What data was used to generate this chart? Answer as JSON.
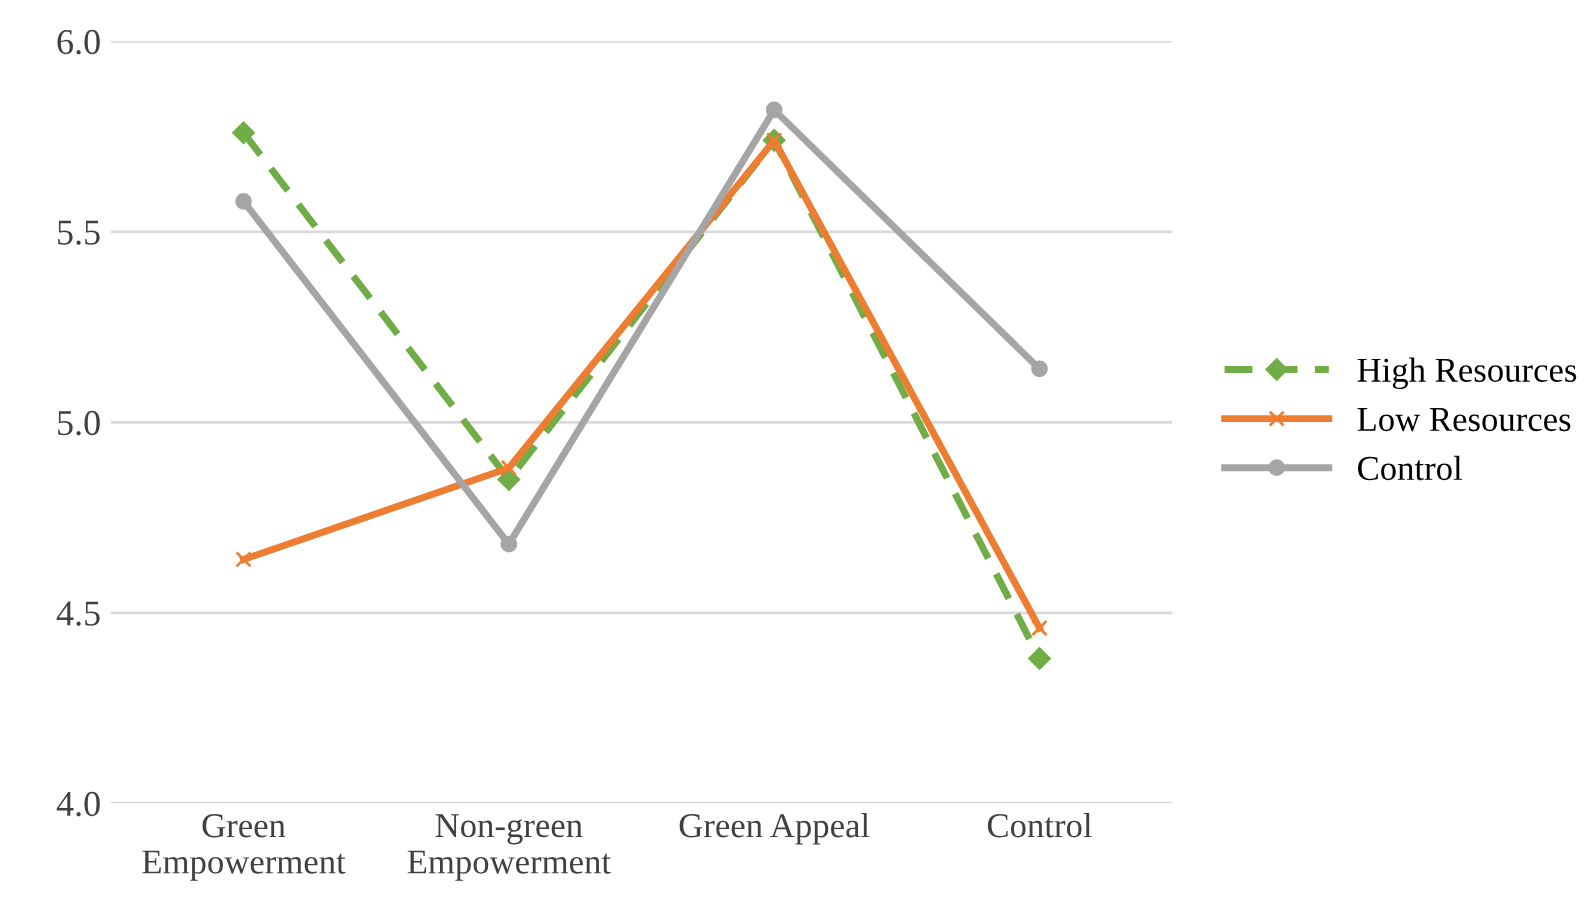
{
  "chart_data": {
    "type": "line",
    "categories": [
      "Green\nEmpowerment",
      "Non-green\nEmpowerment",
      "Green Appeal",
      "Control"
    ],
    "series": [
      {
        "name": "High Resources",
        "color": "#70ad47",
        "values": [
          5.76,
          4.85,
          5.74,
          4.38
        ],
        "marker": "diamond",
        "line_style": "dashed"
      },
      {
        "name": "Low Resources",
        "color": "#ed7d31",
        "values": [
          4.64,
          4.88,
          5.74,
          4.46
        ],
        "marker": "cross",
        "line_style": "solid"
      },
      {
        "name": "Control",
        "color": "#a5a5a5",
        "values": [
          5.58,
          4.68,
          5.82,
          5.14
        ],
        "marker": "circle",
        "line_style": "solid"
      }
    ],
    "ylim": [
      4.0,
      6.0
    ],
    "yticks": [
      {
        "value": 4.0,
        "label": "4.0"
      },
      {
        "value": 4.5,
        "label": "4.5"
      },
      {
        "value": 5.0,
        "label": "5.0"
      },
      {
        "value": 5.5,
        "label": "5.5"
      },
      {
        "value": 6.0,
        "label": "6.0"
      }
    ],
    "grid": "y",
    "legend": "right"
  }
}
